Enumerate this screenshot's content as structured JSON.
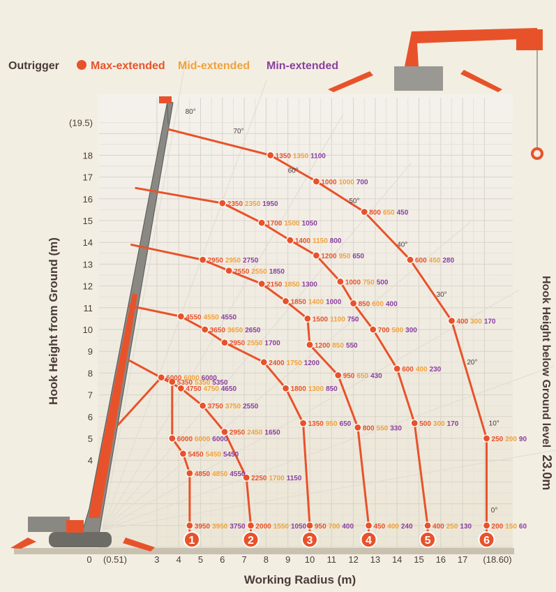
{
  "legend": {
    "title": "Outrigger",
    "items": [
      {
        "label": "Max-extended",
        "color": "#e8522a"
      },
      {
        "label": "Mid-extended",
        "color": "#f0a23a"
      },
      {
        "label": "Min-extended",
        "color": "#8a3fa0"
      }
    ]
  },
  "right_label": "Hook Height below Ground level",
  "right_value": "23.0m",
  "chart_data": {
    "type": "scatter",
    "xlabel": "Working Radius (m)",
    "ylabel": "Hook Height from Ground (m)",
    "xlim": [
      0,
      18.6
    ],
    "ylim": [
      0,
      19.5
    ],
    "x_ticks": [
      "0",
      "(0.51)",
      "3",
      "4",
      "5",
      "6",
      "7",
      "8",
      "9",
      "10",
      "11",
      "12",
      "13",
      "14",
      "15",
      "16",
      "17",
      "(18.60)"
    ],
    "y_ticks": [
      "4",
      "5",
      "6",
      "7",
      "8",
      "9",
      "10",
      "11",
      "12",
      "13",
      "14",
      "15",
      "16",
      "17",
      "18",
      "(19.5)"
    ],
    "angle_labels": [
      "80°",
      "70°",
      "60°",
      "50°",
      "40°",
      "30°",
      "20°",
      "10°",
      "0°"
    ],
    "boom_markers": [
      "1",
      "2",
      "3",
      "4",
      "5",
      "6"
    ],
    "series_names": [
      "Max-extended",
      "Mid-extended",
      "Min-extended"
    ],
    "series_colors": [
      "#e8522a",
      "#f0a23a",
      "#8a3fa0"
    ],
    "points": [
      {
        "boom": "1",
        "x": 4.5,
        "y": 1.0,
        "loads": [
          "3950",
          "3950",
          "3750"
        ]
      },
      {
        "boom": "1",
        "x": 4.5,
        "y": 3.4,
        "loads": [
          "4850",
          "4850",
          "4550"
        ]
      },
      {
        "boom": "1",
        "x": 4.2,
        "y": 4.3,
        "loads": [
          "5450",
          "5450",
          "5450"
        ]
      },
      {
        "boom": "1",
        "x": 3.7,
        "y": 5.0,
        "loads": [
          "6000",
          "6000",
          "6000"
        ]
      },
      {
        "boom": "1",
        "x": 3.7,
        "y": 7.6,
        "loads": [
          "5350",
          "5350",
          "5350"
        ]
      },
      {
        "boom": "1",
        "x": 3.2,
        "y": 7.8,
        "loads": [
          "6000",
          "6000",
          "6000"
        ]
      },
      {
        "boom": "2",
        "x": 7.3,
        "y": 1.0,
        "loads": [
          "2000",
          "1550",
          "1050"
        ]
      },
      {
        "boom": "2",
        "x": 7.1,
        "y": 3.2,
        "loads": [
          "2250",
          "1700",
          "1150"
        ]
      },
      {
        "boom": "2",
        "x": 6.1,
        "y": 5.3,
        "loads": [
          "2950",
          "2450",
          "1650"
        ]
      },
      {
        "boom": "2",
        "x": 5.1,
        "y": 6.5,
        "loads": [
          "3750",
          "3750",
          "2550"
        ]
      },
      {
        "boom": "2",
        "x": 4.1,
        "y": 7.3,
        "loads": [
          "4750",
          "4750",
          "4650"
        ]
      },
      {
        "boom": "3",
        "x": 10.0,
        "y": 1.0,
        "loads": [
          "950",
          "700",
          "400"
        ]
      },
      {
        "boom": "3",
        "x": 9.7,
        "y": 5.7,
        "loads": [
          "1350",
          "950",
          "650"
        ]
      },
      {
        "boom": "3",
        "x": 8.9,
        "y": 7.3,
        "loads": [
          "1800",
          "1300",
          "850"
        ]
      },
      {
        "boom": "3",
        "x": 7.9,
        "y": 8.5,
        "loads": [
          "2400",
          "1750",
          "1200"
        ]
      },
      {
        "boom": "3",
        "x": 6.1,
        "y": 9.4,
        "loads": [
          "2950",
          "2550",
          "1700"
        ]
      },
      {
        "boom": "3",
        "x": 5.2,
        "y": 10.0,
        "loads": [
          "3650",
          "3650",
          "2650"
        ]
      },
      {
        "boom": "3",
        "x": 4.1,
        "y": 10.6,
        "loads": [
          "4550",
          "4550",
          "4550"
        ]
      },
      {
        "boom": "4",
        "x": 12.7,
        "y": 1.0,
        "loads": [
          "450",
          "400",
          "240"
        ]
      },
      {
        "boom": "4",
        "x": 12.2,
        "y": 5.5,
        "loads": [
          "800",
          "550",
          "330"
        ]
      },
      {
        "boom": "4",
        "x": 11.3,
        "y": 7.9,
        "loads": [
          "950",
          "650",
          "430"
        ]
      },
      {
        "boom": "4",
        "x": 10.0,
        "y": 9.3,
        "loads": [
          "1200",
          "850",
          "550"
        ]
      },
      {
        "boom": "4",
        "x": 9.9,
        "y": 10.5,
        "loads": [
          "1500",
          "1100",
          "750"
        ]
      },
      {
        "boom": "4",
        "x": 8.9,
        "y": 11.3,
        "loads": [
          "1850",
          "1400",
          "1000"
        ]
      },
      {
        "boom": "4",
        "x": 7.8,
        "y": 12.1,
        "loads": [
          "2150",
          "1850",
          "1300"
        ]
      },
      {
        "boom": "4",
        "x": 6.3,
        "y": 12.7,
        "loads": [
          "2550",
          "2550",
          "1850"
        ]
      },
      {
        "boom": "4",
        "x": 5.1,
        "y": 13.2,
        "loads": [
          "2950",
          "2950",
          "2750"
        ]
      },
      {
        "boom": "5",
        "x": 15.4,
        "y": 1.0,
        "loads": [
          "400",
          "250",
          "130"
        ]
      },
      {
        "boom": "5",
        "x": 14.8,
        "y": 5.7,
        "loads": [
          "500",
          "300",
          "170"
        ]
      },
      {
        "boom": "5",
        "x": 14.0,
        "y": 8.2,
        "loads": [
          "600",
          "400",
          "230"
        ]
      },
      {
        "boom": "5",
        "x": 12.9,
        "y": 10.0,
        "loads": [
          "700",
          "500",
          "300"
        ]
      },
      {
        "boom": "5",
        "x": 12.0,
        "y": 11.2,
        "loads": [
          "850",
          "600",
          "400"
        ]
      },
      {
        "boom": "5",
        "x": 11.4,
        "y": 12.2,
        "loads": [
          "1000",
          "750",
          "500"
        ]
      },
      {
        "boom": "5",
        "x": 10.3,
        "y": 13.4,
        "loads": [
          "1200",
          "950",
          "650"
        ]
      },
      {
        "boom": "5",
        "x": 9.1,
        "y": 14.1,
        "loads": [
          "1400",
          "1150",
          "800"
        ]
      },
      {
        "boom": "5",
        "x": 7.8,
        "y": 14.9,
        "loads": [
          "1700",
          "1500",
          "1050"
        ]
      },
      {
        "boom": "5",
        "x": 6.0,
        "y": 15.8,
        "loads": [
          "2350",
          "2350",
          "1950"
        ]
      },
      {
        "boom": "6",
        "x": 18.1,
        "y": 1.0,
        "loads": [
          "200",
          "150",
          "60"
        ]
      },
      {
        "boom": "6",
        "x": 18.1,
        "y": 5.0,
        "loads": [
          "250",
          "200",
          "90"
        ]
      },
      {
        "boom": "6",
        "x": 16.5,
        "y": 10.4,
        "loads": [
          "400",
          "300",
          "170"
        ]
      },
      {
        "boom": "6",
        "x": 14.6,
        "y": 13.2,
        "loads": [
          "600",
          "450",
          "280"
        ]
      },
      {
        "boom": "6",
        "x": 12.5,
        "y": 15.4,
        "loads": [
          "800",
          "650",
          "450"
        ]
      },
      {
        "boom": "6",
        "x": 10.3,
        "y": 16.8,
        "loads": [
          "1000",
          "1000",
          "700"
        ]
      },
      {
        "boom": "6",
        "x": 8.2,
        "y": 18.0,
        "loads": [
          "1350",
          "1350",
          "1100"
        ]
      }
    ]
  }
}
